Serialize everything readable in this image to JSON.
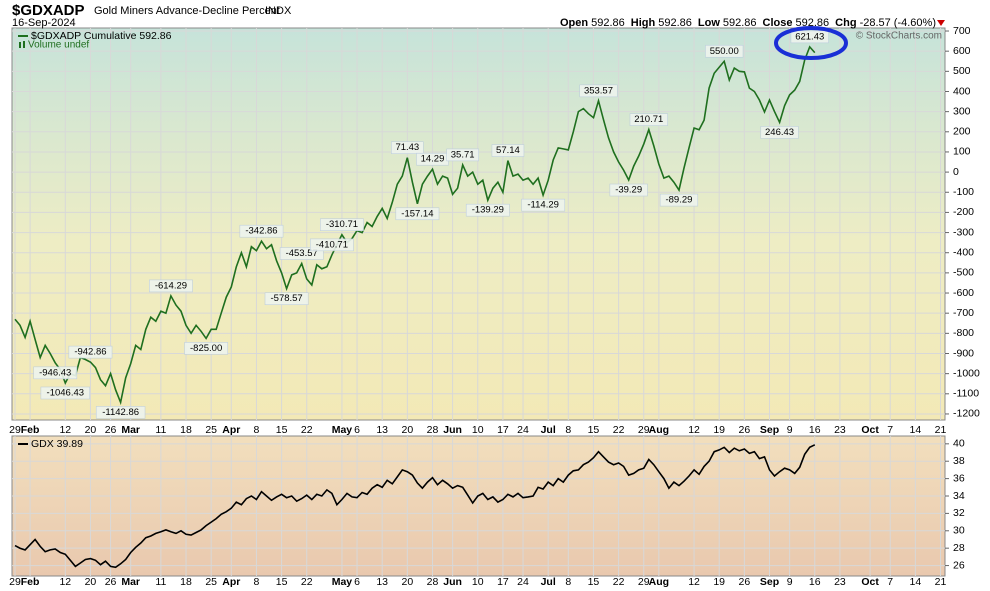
{
  "chart_data": [
    {
      "type": "line",
      "title": "$GDXADP",
      "subtitle": "Gold Miners Advance-Decline Percent",
      "exchange": "INDX",
      "date": "16-Sep-2024",
      "quote": [
        {
          "label": "Open",
          "value": "592.86"
        },
        {
          "label": "High",
          "value": "592.86"
        },
        {
          "label": "Low",
          "value": "592.86"
        },
        {
          "label": "Close",
          "value": "592.86"
        },
        {
          "label": "Chg",
          "value": "-28.57 (-4.60%)"
        }
      ],
      "credit": "© StockCharts.com",
      "volume_note": "Volume undef",
      "categories": [
        "29",
        null,
        null,
        "Feb",
        null,
        null,
        null,
        null,
        null,
        null,
        "12",
        null,
        null,
        null,
        null,
        "20",
        null,
        null,
        null,
        "26",
        null,
        null,
        null,
        "Mar",
        null,
        null,
        null,
        null,
        null,
        "11",
        null,
        null,
        null,
        null,
        "18",
        null,
        null,
        null,
        null,
        "25",
        null,
        null,
        null,
        "Apr",
        null,
        null,
        null,
        null,
        "8",
        null,
        null,
        null,
        null,
        "15",
        null,
        null,
        null,
        null,
        "22",
        null,
        null,
        null,
        null,
        null,
        null,
        "May",
        null,
        null,
        "6",
        null,
        null,
        null,
        null,
        "13",
        null,
        null,
        null,
        null,
        "20",
        null,
        null,
        null,
        null,
        "28",
        null,
        null,
        null,
        "Jun",
        null,
        null,
        null,
        null,
        "10",
        null,
        null,
        null,
        null,
        "17",
        null,
        null,
        null,
        "24",
        null,
        null,
        null,
        null,
        "Jul",
        null,
        null,
        null,
        "8",
        null,
        null,
        null,
        null,
        "15",
        null,
        null,
        null,
        null,
        "22",
        null,
        null,
        null,
        null,
        "29",
        null,
        null,
        "Aug",
        null,
        null,
        null,
        null,
        null,
        null,
        "12",
        null,
        null,
        null,
        null,
        "19",
        null,
        null,
        null,
        null,
        "26",
        null,
        null,
        null,
        null,
        "Sep",
        null,
        null,
        null,
        "9",
        null,
        null,
        null,
        null,
        "16",
        null,
        null,
        null,
        null,
        "23",
        null,
        null,
        null,
        null,
        null,
        "Oct",
        null,
        null,
        null,
        "7",
        null,
        null,
        null,
        null,
        "14",
        null,
        null,
        null,
        null,
        "21"
      ],
      "series": [
        {
          "name": "$GDXADP Cumulative 592.86",
          "color": "#1f6f1f",
          "values": [
            -730,
            -760,
            -820,
            -740,
            -830,
            -920,
            -860,
            -900,
            -946.43,
            -980,
            -1046.43,
            -1000,
            -1010,
            -920,
            -930,
            -942.86,
            -970,
            -1030,
            -1060,
            -1000,
            -1080,
            -1142.86,
            -1020,
            -950,
            -860,
            -880,
            -780,
            -720,
            -740,
            -690,
            -700,
            -614.29,
            -660,
            -690,
            -760,
            -800,
            -760,
            -790,
            -825.0,
            -780,
            -780,
            -700,
            -620,
            -570,
            -470,
            -400,
            -470,
            -370,
            -390,
            -342.86,
            -380,
            -360,
            -440,
            -500,
            -578.57,
            -510,
            -500,
            -453.57,
            -530,
            -560,
            -460,
            -480,
            -470,
            -410.71,
            -360,
            -310.71,
            -350,
            -330,
            -290,
            -300,
            -250,
            -270,
            -220,
            -180,
            -230,
            -150,
            -60,
            -20,
            71.43,
            -50,
            -157.14,
            -60,
            -20,
            14.29,
            -60,
            -20,
            -30,
            -110,
            -80,
            35.71,
            -20,
            0,
            -60,
            -40,
            -139.29,
            -80,
            -50,
            -100,
            57.14,
            -20,
            -10,
            -40,
            -30,
            -60,
            -30,
            -114.29,
            -40,
            60,
            120,
            115,
            110,
            200,
            300,
            315,
            290,
            270,
            353.57,
            260,
            170,
            100,
            50,
            10,
            -39.29,
            30,
            80,
            140,
            210.71,
            130,
            40,
            -30,
            -20,
            -50,
            -89.29,
            20,
            120,
            219,
            210,
            258,
            417,
            490,
            520,
            550.0,
            457,
            516,
            500,
            497,
            417,
            400,
            358,
            298,
            358,
            300,
            246.43,
            330,
            383,
            407,
            450,
            556,
            621.43,
            592.86,
            null,
            null,
            null,
            null,
            null,
            null,
            null,
            null,
            null,
            null,
            null,
            null,
            null,
            null,
            null,
            null,
            null,
            null,
            null,
            null,
            null,
            null,
            null,
            null,
            null
          ],
          "value_labels": [
            null,
            null,
            null,
            null,
            null,
            null,
            null,
            null,
            "-946.43",
            null,
            "-1046.43",
            null,
            null,
            null,
            null,
            "-942.86",
            null,
            null,
            null,
            null,
            null,
            "-1142.86",
            null,
            null,
            null,
            null,
            null,
            null,
            null,
            null,
            null,
            "-614.29",
            null,
            null,
            null,
            null,
            null,
            null,
            "-825.00",
            null,
            null,
            null,
            null,
            null,
            null,
            null,
            null,
            null,
            null,
            "-342.86",
            null,
            null,
            null,
            null,
            "-578.57",
            null,
            null,
            "-453.57",
            null,
            null,
            null,
            null,
            null,
            "-410.71",
            null,
            "-310.71",
            null,
            null,
            null,
            null,
            null,
            null,
            null,
            null,
            null,
            null,
            null,
            null,
            "71.43",
            null,
            "-157.14",
            null,
            null,
            "14.29",
            null,
            null,
            null,
            null,
            null,
            "35.71",
            null,
            null,
            null,
            null,
            "-139.29",
            null,
            null,
            null,
            "57.14",
            null,
            null,
            null,
            null,
            null,
            null,
            "-114.29",
            null,
            null,
            null,
            null,
            null,
            null,
            null,
            null,
            null,
            null,
            "353.57",
            null,
            null,
            null,
            null,
            null,
            "-39.29",
            null,
            null,
            null,
            "210.71",
            null,
            null,
            null,
            null,
            null,
            "-89.29",
            null,
            null,
            null,
            null,
            null,
            null,
            null,
            null,
            "550.00",
            null,
            null,
            null,
            null,
            null,
            null,
            null,
            null,
            null,
            null,
            "246.43",
            null,
            null,
            null,
            null,
            null,
            "621.43",
            null,
            null,
            null,
            null,
            null,
            null,
            null,
            null,
            null,
            null,
            null,
            null,
            null,
            null,
            null,
            null,
            null,
            null,
            null,
            null,
            null,
            null,
            null,
            null,
            null,
            null
          ]
        }
      ],
      "ylim": [
        -1230,
        715
      ],
      "yticks": [
        700,
        600,
        500,
        400,
        300,
        200,
        100,
        0,
        -100,
        -200,
        -300,
        -400,
        -500,
        -600,
        -700,
        -800,
        -900,
        -1000,
        -1100,
        -1200
      ],
      "grid": true
    },
    {
      "type": "line",
      "series": [
        {
          "name": "GDX 39.89",
          "color": "#000000",
          "values": [
            28.3,
            28.0,
            27.8,
            28.4,
            29.0,
            28.2,
            27.6,
            27.8,
            27.9,
            27.5,
            27.3,
            26.6,
            25.9,
            26.3,
            26.7,
            26.8,
            26.6,
            26.1,
            26.5,
            25.9,
            25.8,
            26.2,
            26.7,
            27.5,
            28.1,
            28.6,
            29.2,
            29.4,
            29.7,
            29.9,
            30.1,
            29.9,
            29.7,
            30.0,
            29.6,
            29.5,
            29.8,
            30.1,
            30.6,
            31.0,
            31.4,
            31.9,
            32.2,
            32.6,
            33.3,
            33.0,
            33.7,
            34.0,
            33.6,
            34.5,
            34.0,
            33.5,
            33.9,
            34.2,
            33.8,
            34.0,
            33.4,
            33.7,
            34.1,
            33.6,
            34.2,
            34.0,
            34.7,
            34.3,
            33.0,
            33.6,
            34.3,
            33.9,
            33.8,
            34.4,
            34.2,
            34.9,
            35.3,
            35.0,
            35.8,
            35.4,
            36.2,
            37.0,
            36.8,
            36.4,
            35.5,
            34.9,
            35.6,
            36.1,
            35.3,
            35.8,
            35.4,
            34.9,
            35.2,
            35.0,
            34.1,
            33.2,
            34.0,
            34.3,
            33.6,
            33.9,
            33.3,
            33.6,
            34.2,
            33.9,
            34.3,
            33.8,
            33.9,
            34.0,
            35.0,
            34.8,
            35.6,
            35.2,
            36.0,
            35.6,
            36.4,
            36.9,
            37.0,
            37.6,
            37.9,
            38.4,
            39.1,
            38.5,
            37.9,
            37.6,
            37.8,
            37.4,
            36.4,
            36.6,
            37.0,
            37.2,
            38.2,
            37.6,
            36.8,
            36.0,
            34.9,
            35.6,
            35.2,
            35.7,
            36.3,
            37.0,
            36.5,
            37.4,
            38.0,
            39.1,
            39.3,
            39.6,
            39.0,
            39.5,
            39.2,
            39.4,
            38.9,
            39.1,
            38.3,
            38.5,
            37.0,
            36.3,
            36.8,
            37.2,
            37.0,
            36.6,
            37.3,
            38.8,
            39.6,
            39.89,
            null,
            null,
            null,
            null,
            null,
            null,
            null,
            null,
            null,
            null,
            null,
            null,
            null,
            null,
            null,
            null,
            null,
            null,
            null,
            null,
            null,
            null,
            null,
            null,
            null
          ]
        }
      ],
      "ylim": [
        24.8,
        40.9
      ],
      "yticks": [
        40,
        38,
        36,
        34,
        32,
        30,
        28,
        26
      ],
      "grid": true
    }
  ]
}
